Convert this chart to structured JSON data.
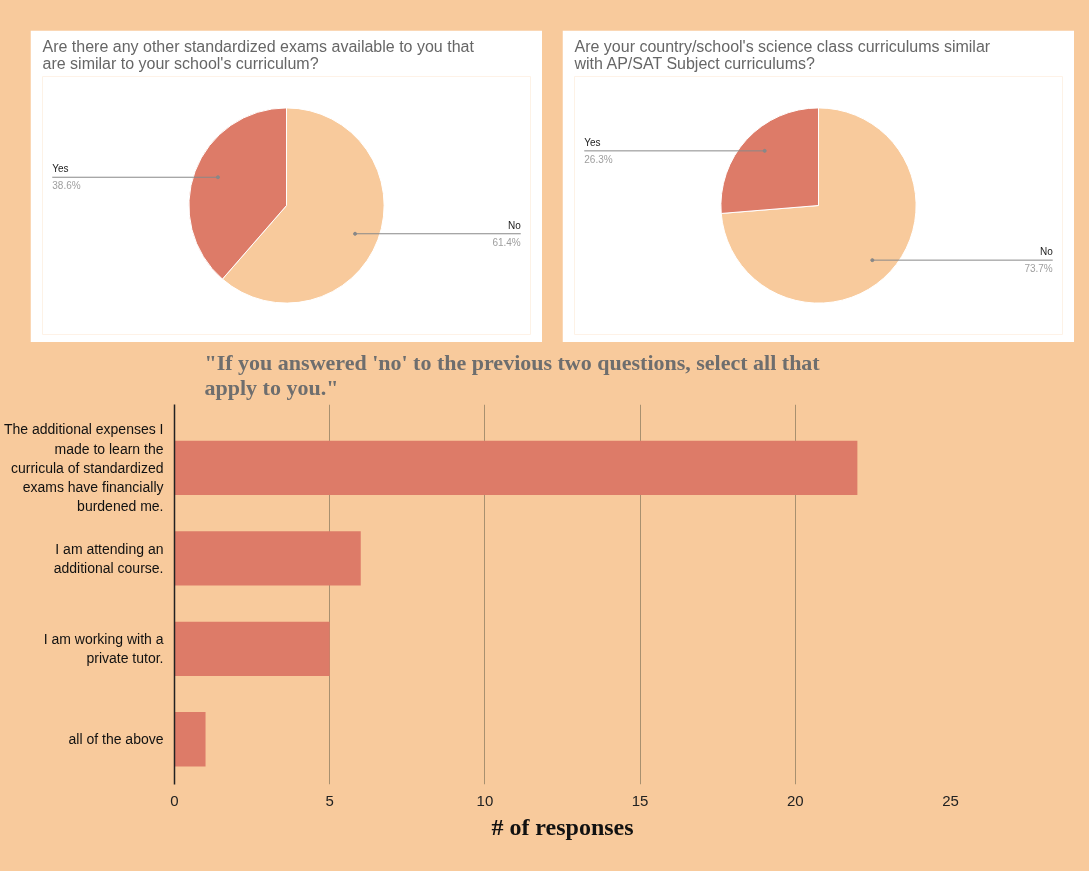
{
  "chart_data": [
    {
      "type": "pie",
      "title": "Are there any other standardized exams available to you that are similar to your school's curriculum?",
      "categories": [
        "No",
        "Yes"
      ],
      "values": [
        61.4,
        38.6
      ],
      "colors": [
        "#f8ca9c",
        "#dd7b68"
      ],
      "value_labels": [
        "61.4%",
        "38.6%"
      ]
    },
    {
      "type": "pie",
      "title": "Are your country/school's science class curriculums similar with AP/SAT Subject curriculums?",
      "categories": [
        "No",
        "Yes"
      ],
      "values": [
        73.7,
        26.3
      ],
      "colors": [
        "#f8ca9c",
        "#dd7b68"
      ],
      "value_labels": [
        "73.7%",
        "26.3%"
      ]
    },
    {
      "type": "bar",
      "orientation": "horizontal",
      "title": "\"If you answered 'no' to the previous two questions, select all that apply to you.\"",
      "xlabel": "# of responses",
      "categories": [
        "The additional expenses I made to learn the curricula of standardized exams have financially burdened me.",
        "I am attending an additional course.",
        "I am working with a private tutor.",
        "all of the above"
      ],
      "values": [
        22,
        6,
        5,
        1
      ],
      "color": "#dd7b68",
      "xlim": [
        0,
        25
      ],
      "xticks": [
        0,
        5,
        10,
        15,
        20,
        25
      ],
      "grid": "x"
    }
  ]
}
